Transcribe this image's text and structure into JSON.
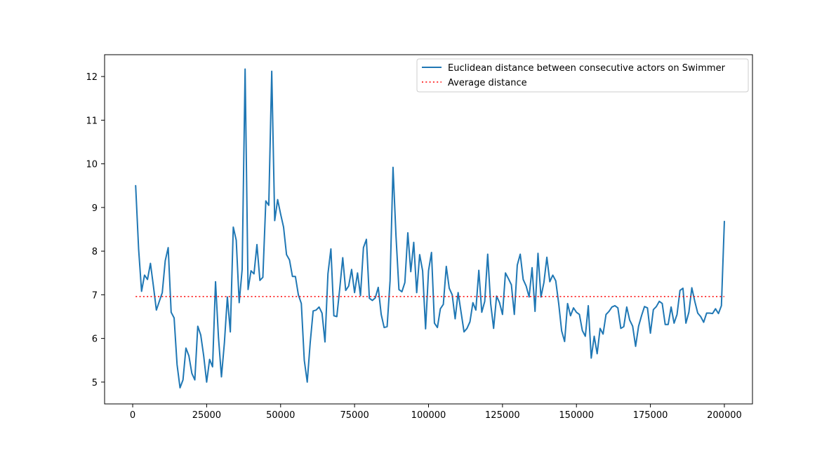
{
  "chart_data": {
    "type": "line",
    "title": "",
    "xlabel": "",
    "ylabel": "",
    "xlim": [
      -9500,
      209500
    ],
    "ylim": [
      4.5,
      12.5
    ],
    "xticks": [
      0,
      25000,
      50000,
      75000,
      100000,
      125000,
      150000,
      175000,
      200000
    ],
    "xtick_labels": [
      "0",
      "25000",
      "50000",
      "75000",
      "100000",
      "125000",
      "150000",
      "175000",
      "200000"
    ],
    "yticks": [
      5,
      6,
      7,
      8,
      9,
      10,
      11,
      12
    ],
    "ytick_labels": [
      "5",
      "6",
      "7",
      "8",
      "9",
      "10",
      "11",
      "12"
    ],
    "grid": false,
    "legend": {
      "location": "top-right"
    },
    "series": [
      {
        "name": "Euclidean distance between consecutive actors on Swimmer",
        "color": "#1f77b4",
        "style": "solid",
        "x": [
          1000,
          2000,
          3000,
          4000,
          5000,
          6000,
          7000,
          8000,
          9000,
          10000,
          11000,
          12000,
          13000,
          14000,
          15000,
          16000,
          17000,
          18000,
          19000,
          20000,
          21000,
          22000,
          23000,
          24000,
          25000,
          26000,
          27000,
          28000,
          29000,
          30000,
          31000,
          32000,
          33000,
          34000,
          35000,
          36000,
          37000,
          38000,
          39000,
          40000,
          41000,
          42000,
          43000,
          44000,
          45000,
          46000,
          47000,
          48000,
          49000,
          50000,
          51000,
          52000,
          53000,
          54000,
          55000,
          56000,
          57000,
          58000,
          59000,
          60000,
          61000,
          62000,
          63000,
          64000,
          65000,
          66000,
          67000,
          68000,
          69000,
          70000,
          71000,
          72000,
          73000,
          74000,
          75000,
          76000,
          77000,
          78000,
          79000,
          80000,
          81000,
          82000,
          83000,
          84000,
          85000,
          86000,
          87000,
          88000,
          89000,
          90000,
          91000,
          92000,
          93000,
          94000,
          95000,
          96000,
          97000,
          98000,
          99000,
          100000,
          101000,
          102000,
          103000,
          104000,
          105000,
          106000,
          107000,
          108000,
          109000,
          110000,
          111000,
          112000,
          113000,
          114000,
          115000,
          116000,
          117000,
          118000,
          119000,
          120000,
          121000,
          122000,
          123000,
          124000,
          125000,
          126000,
          127000,
          128000,
          129000,
          130000,
          131000,
          132000,
          133000,
          134000,
          135000,
          136000,
          137000,
          138000,
          139000,
          140000,
          141000,
          142000,
          143000,
          144000,
          145000,
          146000,
          147000,
          148000,
          149000,
          150000,
          151000,
          152000,
          153000,
          154000,
          155000,
          156000,
          157000,
          158000,
          159000,
          160000,
          161000,
          162000,
          163000,
          164000,
          165000,
          166000,
          167000,
          168000,
          169000,
          170000,
          171000,
          172000,
          173000,
          174000,
          175000,
          176000,
          177000,
          178000,
          179000,
          180000,
          181000,
          182000,
          183000,
          184000,
          185000,
          186000,
          187000,
          188000,
          189000,
          190000,
          191000,
          192000,
          193000,
          194000,
          195000,
          196000,
          197000,
          198000,
          199000,
          200000
        ],
        "y": [
          9.5,
          8.05,
          7.08,
          7.45,
          7.35,
          7.72,
          7.2,
          6.65,
          6.85,
          7.05,
          7.78,
          8.08,
          6.6,
          6.47,
          5.4,
          4.87,
          5.05,
          5.78,
          5.6,
          5.2,
          5.05,
          6.28,
          6.08,
          5.6,
          5.0,
          5.52,
          5.35,
          7.3,
          6.02,
          5.12,
          5.9,
          6.95,
          6.15,
          8.55,
          8.25,
          6.82,
          7.58,
          12.17,
          7.12,
          7.55,
          7.48,
          8.15,
          7.33,
          7.4,
          9.15,
          9.05,
          12.12,
          8.7,
          9.18,
          8.85,
          8.55,
          7.92,
          7.8,
          7.42,
          7.42,
          7.0,
          6.8,
          5.5,
          5.0,
          5.9,
          6.63,
          6.65,
          6.72,
          6.58,
          5.92,
          7.48,
          8.05,
          6.52,
          6.5,
          7.15,
          7.85,
          7.1,
          7.2,
          7.58,
          7.05,
          7.5,
          6.98,
          8.08,
          8.27,
          6.92,
          6.87,
          6.93,
          7.17,
          6.55,
          6.25,
          6.27,
          7.32,
          9.92,
          8.35,
          7.12,
          7.07,
          7.28,
          8.42,
          7.53,
          8.2,
          7.05,
          7.92,
          7.55,
          6.22,
          7.55,
          7.97,
          6.35,
          6.25,
          6.68,
          6.78,
          7.65,
          7.15,
          7.0,
          6.45,
          7.05,
          6.6,
          6.15,
          6.23,
          6.38,
          6.82,
          6.65,
          7.56,
          6.6,
          6.85,
          7.93,
          6.8,
          6.23,
          6.97,
          6.82,
          6.55,
          7.5,
          7.37,
          7.23,
          6.55,
          7.68,
          7.93,
          7.35,
          7.2,
          6.95,
          7.62,
          6.62,
          7.95,
          6.95,
          7.28,
          7.86,
          7.3,
          7.45,
          7.32,
          6.8,
          6.17,
          5.93,
          6.8,
          6.52,
          6.7,
          6.6,
          6.55,
          6.18,
          6.05,
          6.75,
          5.55,
          6.05,
          5.65,
          6.23,
          6.1,
          6.55,
          6.62,
          6.72,
          6.75,
          6.7,
          6.23,
          6.27,
          6.72,
          6.42,
          6.28,
          5.82,
          6.28,
          6.52,
          6.73,
          6.7,
          6.12,
          6.66,
          6.73,
          6.85,
          6.8,
          6.32,
          6.32,
          6.72,
          6.35,
          6.55,
          7.1,
          7.15,
          6.35,
          6.6,
          7.16,
          6.85,
          6.58,
          6.5,
          6.37,
          6.58,
          6.58,
          6.57,
          6.68,
          6.57,
          6.75,
          8.68
        ]
      },
      {
        "name": "Average distance",
        "color": "#ff0000",
        "style": "dotted",
        "x": [
          1000,
          200000
        ],
        "y": [
          6.96,
          6.96
        ]
      }
    ]
  }
}
